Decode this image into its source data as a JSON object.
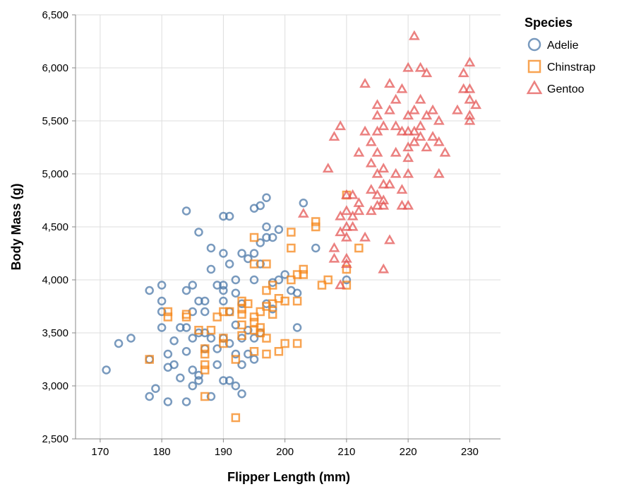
{
  "chart_data": {
    "type": "scatter",
    "xlabel": "Flipper Length (mm)",
    "ylabel": "Body Mass (g)",
    "xlim": [
      166,
      235
    ],
    "ylim": [
      2500,
      6500
    ],
    "xticks": [
      170,
      180,
      190,
      200,
      210,
      220,
      230
    ],
    "yticks": [
      2500,
      3000,
      3500,
      4000,
      4500,
      5000,
      5500,
      6000,
      6500
    ],
    "xtick_labels": [
      "170",
      "180",
      "190",
      "200",
      "210",
      "220",
      "230"
    ],
    "ytick_labels": [
      "2,500",
      "3,000",
      "3,500",
      "4,000",
      "4,500",
      "5,000",
      "5,500",
      "6,000",
      "6,500"
    ],
    "grid": true,
    "legend": {
      "title": "Species",
      "position": "top-right"
    },
    "series": [
      {
        "name": "Adelie",
        "marker": "circle",
        "color": "#4c78a8",
        "points": [
          [
            171,
            3150
          ],
          [
            173,
            3400
          ],
          [
            175,
            3450
          ],
          [
            178,
            3900
          ],
          [
            178,
            3250
          ],
          [
            178,
            2900
          ],
          [
            179,
            2975
          ],
          [
            180,
            3950
          ],
          [
            180,
            3700
          ],
          [
            180,
            3550
          ],
          [
            180,
            3800
          ],
          [
            181,
            3300
          ],
          [
            181,
            3175
          ],
          [
            181,
            2850
          ],
          [
            182,
            3200
          ],
          [
            182,
            3425
          ],
          [
            183,
            3550
          ],
          [
            183,
            3075
          ],
          [
            184,
            3900
          ],
          [
            184,
            4650
          ],
          [
            184,
            3550
          ],
          [
            184,
            2850
          ],
          [
            184,
            3325
          ],
          [
            185,
            3450
          ],
          [
            185,
            3700
          ],
          [
            185,
            3000
          ],
          [
            185,
            3150
          ],
          [
            185,
            3950
          ],
          [
            186,
            4450
          ],
          [
            186,
            3800
          ],
          [
            186,
            3500
          ],
          [
            186,
            3050
          ],
          [
            186,
            3100
          ],
          [
            187,
            3800
          ],
          [
            187,
            3350
          ],
          [
            187,
            3700
          ],
          [
            187,
            3500
          ],
          [
            188,
            4300
          ],
          [
            188,
            4100
          ],
          [
            188,
            3450
          ],
          [
            188,
            2900
          ],
          [
            189,
            3950
          ],
          [
            189,
            3350
          ],
          [
            189,
            3200
          ],
          [
            190,
            4600
          ],
          [
            190,
            4250
          ],
          [
            190,
            3950
          ],
          [
            190,
            3900
          ],
          [
            190,
            3800
          ],
          [
            190,
            3450
          ],
          [
            190,
            3050
          ],
          [
            191,
            4600
          ],
          [
            191,
            4150
          ],
          [
            191,
            3700
          ],
          [
            191,
            3400
          ],
          [
            191,
            3050
          ],
          [
            192,
            4000
          ],
          [
            192,
            3875
          ],
          [
            192,
            3575
          ],
          [
            192,
            3300
          ],
          [
            192,
            3000
          ],
          [
            193,
            4250
          ],
          [
            193,
            3775
          ],
          [
            193,
            3450
          ],
          [
            193,
            2925
          ],
          [
            193,
            3200
          ],
          [
            194,
            4200
          ],
          [
            194,
            3525
          ],
          [
            194,
            3300
          ],
          [
            195,
            4675
          ],
          [
            195,
            4250
          ],
          [
            195,
            4000
          ],
          [
            195,
            3450
          ],
          [
            195,
            3250
          ],
          [
            196,
            4700
          ],
          [
            196,
            4350
          ],
          [
            196,
            4150
          ],
          [
            196,
            3500
          ],
          [
            197,
            4775
          ],
          [
            197,
            4500
          ],
          [
            197,
            4400
          ],
          [
            197,
            3775
          ],
          [
            198,
            4400
          ],
          [
            198,
            3975
          ],
          [
            198,
            3725
          ],
          [
            199,
            4475
          ],
          [
            199,
            4000
          ],
          [
            200,
            4050
          ],
          [
            201,
            3900
          ],
          [
            202,
            3875
          ],
          [
            202,
            3550
          ],
          [
            203,
            4725
          ],
          [
            205,
            4300
          ],
          [
            210,
            4000
          ]
        ]
      },
      {
        "name": "Chinstrap",
        "marker": "square",
        "color": "#f58518",
        "points": [
          [
            178,
            3250
          ],
          [
            181,
            3700
          ],
          [
            181,
            3650
          ],
          [
            184,
            3650
          ],
          [
            184,
            3675
          ],
          [
            186,
            3525
          ],
          [
            187,
            3350
          ],
          [
            187,
            3300
          ],
          [
            187,
            3200
          ],
          [
            187,
            3150
          ],
          [
            187,
            2900
          ],
          [
            188,
            3525
          ],
          [
            189,
            3650
          ],
          [
            190,
            3450
          ],
          [
            190,
            3400
          ],
          [
            190,
            3700
          ],
          [
            191,
            3700
          ],
          [
            192,
            3250
          ],
          [
            192,
            2700
          ],
          [
            193,
            3800
          ],
          [
            193,
            3725
          ],
          [
            193,
            3675
          ],
          [
            193,
            3575
          ],
          [
            193,
            3475
          ],
          [
            194,
            3775
          ],
          [
            195,
            4400
          ],
          [
            195,
            4150
          ],
          [
            195,
            3650
          ],
          [
            195,
            3600
          ],
          [
            195,
            3525
          ],
          [
            195,
            3325
          ],
          [
            196,
            3700
          ],
          [
            196,
            3550
          ],
          [
            196,
            3500
          ],
          [
            197,
            4150
          ],
          [
            197,
            3900
          ],
          [
            197,
            3750
          ],
          [
            197,
            3450
          ],
          [
            197,
            3300
          ],
          [
            198,
            3950
          ],
          [
            198,
            3775
          ],
          [
            198,
            3675
          ],
          [
            199,
            3825
          ],
          [
            199,
            3325
          ],
          [
            200,
            3800
          ],
          [
            200,
            3400
          ],
          [
            201,
            4450
          ],
          [
            201,
            4300
          ],
          [
            201,
            4000
          ],
          [
            202,
            4050
          ],
          [
            202,
            3800
          ],
          [
            202,
            3400
          ],
          [
            203,
            4100
          ],
          [
            203,
            4050
          ],
          [
            205,
            4550
          ],
          [
            205,
            4500
          ],
          [
            206,
            3950
          ],
          [
            207,
            4000
          ],
          [
            210,
            4800
          ],
          [
            210,
            4100
          ],
          [
            210,
            3950
          ],
          [
            212,
            4300
          ]
        ]
      },
      {
        "name": "Gentoo",
        "marker": "triangle",
        "color": "#e45756",
        "points": [
          [
            203,
            4625
          ],
          [
            207,
            5050
          ],
          [
            208,
            5350
          ],
          [
            208,
            4300
          ],
          [
            208,
            4200
          ],
          [
            209,
            5450
          ],
          [
            209,
            4600
          ],
          [
            209,
            4450
          ],
          [
            209,
            3950
          ],
          [
            210,
            4800
          ],
          [
            210,
            4650
          ],
          [
            210,
            4500
          ],
          [
            210,
            4400
          ],
          [
            210,
            4200
          ],
          [
            210,
            4150
          ],
          [
            211,
            4800
          ],
          [
            211,
            4600
          ],
          [
            211,
            4500
          ],
          [
            212,
            5200
          ],
          [
            212,
            4725
          ],
          [
            212,
            4650
          ],
          [
            213,
            5850
          ],
          [
            213,
            5400
          ],
          [
            213,
            4400
          ],
          [
            214,
            5300
          ],
          [
            214,
            5100
          ],
          [
            214,
            4850
          ],
          [
            214,
            4650
          ],
          [
            215,
            5650
          ],
          [
            215,
            5550
          ],
          [
            215,
            5400
          ],
          [
            215,
            5200
          ],
          [
            215,
            5000
          ],
          [
            215,
            4800
          ],
          [
            215,
            4700
          ],
          [
            216,
            5450
          ],
          [
            216,
            5050
          ],
          [
            216,
            4900
          ],
          [
            216,
            4750
          ],
          [
            216,
            4700
          ],
          [
            216,
            4100
          ],
          [
            217,
            5850
          ],
          [
            217,
            5600
          ],
          [
            217,
            4900
          ],
          [
            217,
            4375
          ],
          [
            218,
            5700
          ],
          [
            218,
            5450
          ],
          [
            218,
            5200
          ],
          [
            218,
            5000
          ],
          [
            219,
            5800
          ],
          [
            219,
            5400
          ],
          [
            219,
            4850
          ],
          [
            219,
            4700
          ],
          [
            220,
            6000
          ],
          [
            220,
            5550
          ],
          [
            220,
            5400
          ],
          [
            220,
            5250
          ],
          [
            220,
            5150
          ],
          [
            220,
            5000
          ],
          [
            220,
            4700
          ],
          [
            221,
            6300
          ],
          [
            221,
            5600
          ],
          [
            221,
            5400
          ],
          [
            221,
            5300
          ],
          [
            222,
            6000
          ],
          [
            222,
            5700
          ],
          [
            222,
            5450
          ],
          [
            222,
            5350
          ],
          [
            223,
            5950
          ],
          [
            223,
            5550
          ],
          [
            223,
            5250
          ],
          [
            224,
            5600
          ],
          [
            224,
            5350
          ],
          [
            225,
            5500
          ],
          [
            225,
            5300
          ],
          [
            225,
            5000
          ],
          [
            226,
            5200
          ],
          [
            228,
            5600
          ],
          [
            229,
            5950
          ],
          [
            229,
            5800
          ],
          [
            230,
            6050
          ],
          [
            230,
            5800
          ],
          [
            230,
            5700
          ],
          [
            230,
            5550
          ],
          [
            230,
            5500
          ],
          [
            231,
            5650
          ]
        ]
      }
    ]
  }
}
